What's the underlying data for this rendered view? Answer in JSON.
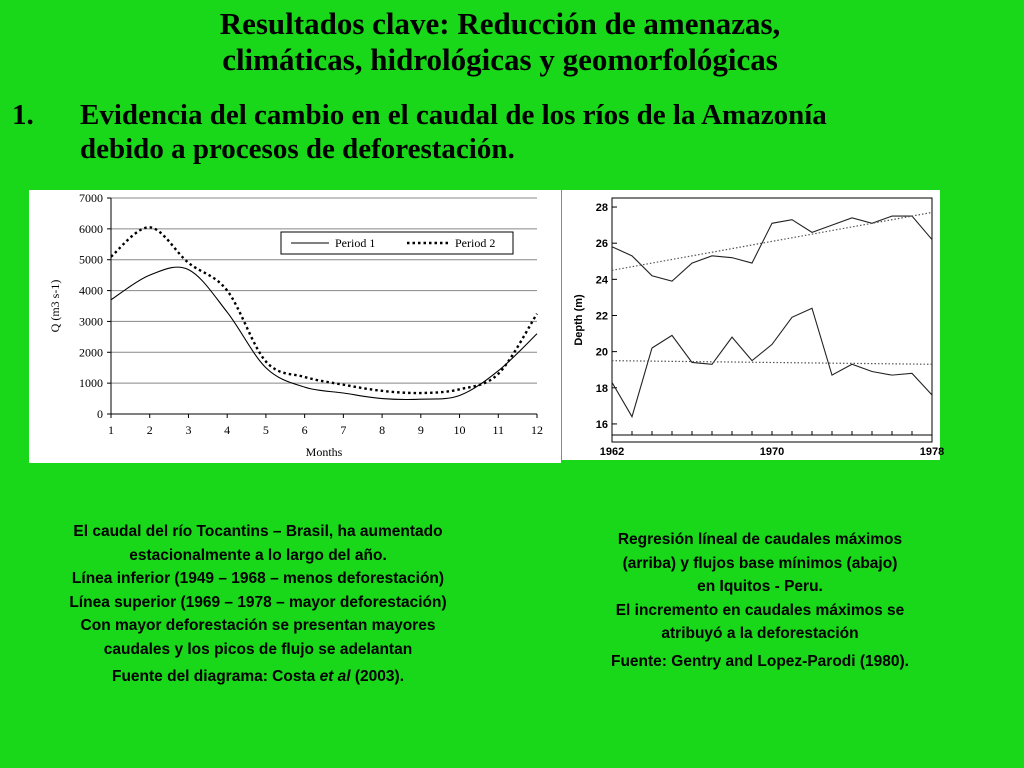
{
  "slide": {
    "title_line1": "Resultados clave: Reducción de amenazas,",
    "title_line2": "climáticas, hidrológicas y geomorfológicas",
    "bullet_number": "1.",
    "bullet_line1": "Evidencia del cambio en el caudal de los ríos de la Amazonía",
    "bullet_line2": "debido a procesos de deforestación."
  },
  "chart_data": [
    {
      "type": "line",
      "xlabel": "Months",
      "ylabel": "Q (m3 s-1)",
      "x": [
        1,
        2,
        3,
        4,
        5,
        6,
        7,
        8,
        9,
        10,
        11,
        12
      ],
      "xlim": [
        1,
        12
      ],
      "ylim": [
        0,
        7000
      ],
      "yticks": [
        0,
        1000,
        2000,
        3000,
        4000,
        5000,
        6000,
        7000
      ],
      "grid": "horizontal",
      "legend_position": "top-right",
      "series": [
        {
          "name": "Period 1",
          "style": "solid",
          "values": [
            3700,
            4500,
            4680,
            3300,
            1500,
            870,
            680,
            500,
            480,
            600,
            1400,
            2600
          ]
        },
        {
          "name": "Period 2",
          "style": "dotted",
          "values": [
            5100,
            6050,
            4900,
            4000,
            1700,
            1200,
            950,
            750,
            680,
            800,
            1300,
            3250
          ]
        }
      ]
    },
    {
      "type": "line",
      "xlabel": "",
      "ylabel": "Depth (m)",
      "xlim": [
        1962,
        1978
      ],
      "xticks": [
        1962,
        1970,
        1978
      ],
      "ylim": [
        15,
        28.5
      ],
      "yticks": [
        16,
        18,
        20,
        22,
        24,
        26,
        28
      ],
      "grid": "none",
      "series": [
        {
          "role": "maximum flows",
          "style": "solid",
          "x": [
            1962,
            1963,
            1964,
            1965,
            1966,
            1967,
            1968,
            1969,
            1970,
            1971,
            1972,
            1973,
            1974,
            1975,
            1976,
            1977,
            1978
          ],
          "values": [
            25.8,
            25.3,
            24.2,
            23.9,
            24.9,
            25.3,
            25.2,
            24.9,
            27.1,
            27.3,
            26.6,
            27.0,
            27.4,
            27.1,
            27.5,
            27.5,
            26.2
          ]
        },
        {
          "role": "maximum flows trend",
          "style": "dotted",
          "x": [
            1962,
            1978
          ],
          "values": [
            24.5,
            27.7
          ]
        },
        {
          "role": "minimum base flows",
          "style": "solid",
          "x": [
            1962,
            1963,
            1964,
            1965,
            1966,
            1967,
            1968,
            1969,
            1970,
            1971,
            1972,
            1973,
            1974,
            1975,
            1976,
            1977,
            1978
          ],
          "values": [
            18.3,
            16.4,
            20.2,
            20.9,
            19.4,
            19.3,
            20.8,
            19.5,
            20.4,
            21.9,
            22.4,
            18.7,
            19.3,
            18.9,
            18.7,
            18.8,
            17.6
          ]
        },
        {
          "role": "minimum base flows trend",
          "style": "dotted",
          "x": [
            1962,
            1978
          ],
          "values": [
            19.5,
            19.3
          ]
        }
      ]
    }
  ],
  "caption_left": {
    "line1": "El caudal del río Tocantins – Brasil, ha aumentado",
    "line2": "estacionalmente a lo largo del año.",
    "line3": "Línea inferior (1949 – 1968 – menos deforestación)",
    "line4": "Línea superior (1969 – 1978 – mayor deforestación)",
    "line5": "Con mayor deforestación se presentan mayores",
    "line6": "caudales y los picos de flujo se adelantan",
    "source_prefix": "Fuente del diagrama: Costa ",
    "source_italic": "et al",
    "source_suffix": " (2003)."
  },
  "caption_right": {
    "line1": "Regresión líneal de caudales máximos",
    "line2": "(arriba) y flujos base mínimos (abajo)",
    "line3": "en Iquitos - Peru.",
    "line4": "El incremento en caudales máximos se",
    "line5": "atribuyó a la deforestación",
    "source": "Fuente: Gentry and Lopez-Parodi (1980)."
  }
}
